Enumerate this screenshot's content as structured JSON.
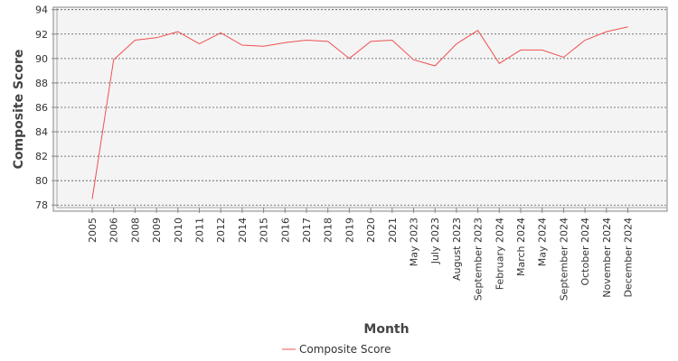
{
  "chart_data": {
    "type": "line",
    "title": "",
    "xlabel": "Month",
    "ylabel": "Composite Score",
    "ylim": [
      77.5,
      94.2
    ],
    "yticks": [
      78,
      80,
      82,
      84,
      86,
      88,
      90,
      92,
      94
    ],
    "grid": true,
    "legend_position": "bottom-center",
    "categories": [
      "2005",
      "2006",
      "2008",
      "2009",
      "2010",
      "2011",
      "2012",
      "2014",
      "2015",
      "2016",
      "2017",
      "2018",
      "2019",
      "2020",
      "2021",
      "May 2023",
      "July 2023",
      "August 2023",
      "September 2023",
      "February 2024",
      "March 2024",
      "May 2024",
      "September 2024",
      "October 2024",
      "November 2024",
      "December 2024"
    ],
    "series": [
      {
        "name": "Composite Score",
        "color": "#f05050",
        "values": [
          78.5,
          89.9,
          91.5,
          91.7,
          92.2,
          91.2,
          92.1,
          91.1,
          91.0,
          91.3,
          91.5,
          91.4,
          90.0,
          91.4,
          91.5,
          89.9,
          89.4,
          91.2,
          92.3,
          89.6,
          90.7,
          90.7,
          90.1,
          91.5,
          92.2,
          92.6
        ]
      }
    ]
  }
}
